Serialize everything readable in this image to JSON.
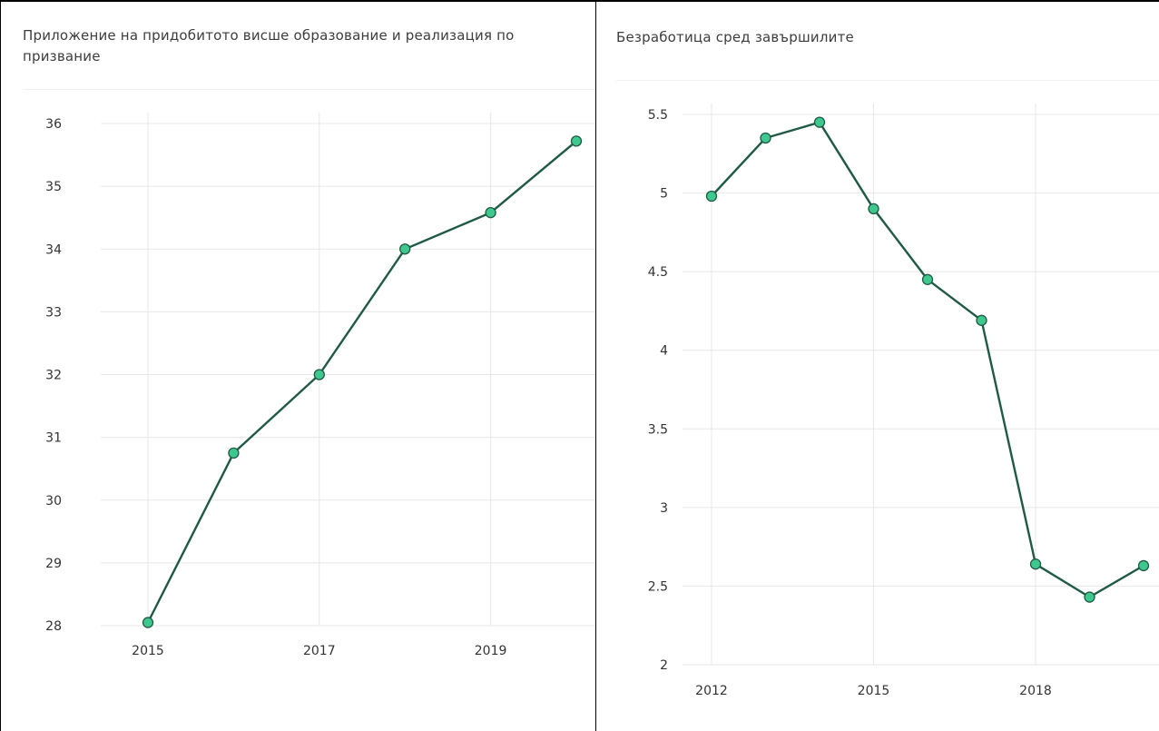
{
  "chart_data": [
    {
      "type": "line",
      "title": "Приложение на придобитото висше образование и реализация по призвание",
      "x": [
        2015,
        2016,
        2017,
        2018,
        2019,
        2020
      ],
      "values": [
        28.05,
        30.75,
        32.0,
        34.0,
        34.58,
        35.72
      ],
      "xticks": [
        "2015",
        "2017",
        "2019"
      ],
      "yticks": [
        "36",
        "35",
        "34",
        "33",
        "32",
        "31",
        "30",
        "29",
        "28"
      ],
      "ylim": [
        28,
        36
      ],
      "grid": true,
      "line_color": "#1f5a44",
      "marker_color": "#3fc88e"
    },
    {
      "type": "line",
      "title": "Безработица сред завършилите",
      "x": [
        2012,
        2013,
        2014,
        2015,
        2016,
        2017,
        2018,
        2019,
        2020
      ],
      "values": [
        4.98,
        5.35,
        5.45,
        4.9,
        4.45,
        4.19,
        2.64,
        2.43,
        2.63
      ],
      "xticks": [
        "2012",
        "2015",
        "2018"
      ],
      "yticks": [
        "5.5",
        "5",
        "4.5",
        "4",
        "3.5",
        "3",
        "2.5",
        "2"
      ],
      "ylim": [
        2,
        5.5
      ],
      "grid": true,
      "line_color": "#1f5a44",
      "marker_color": "#3fc88e"
    }
  ]
}
